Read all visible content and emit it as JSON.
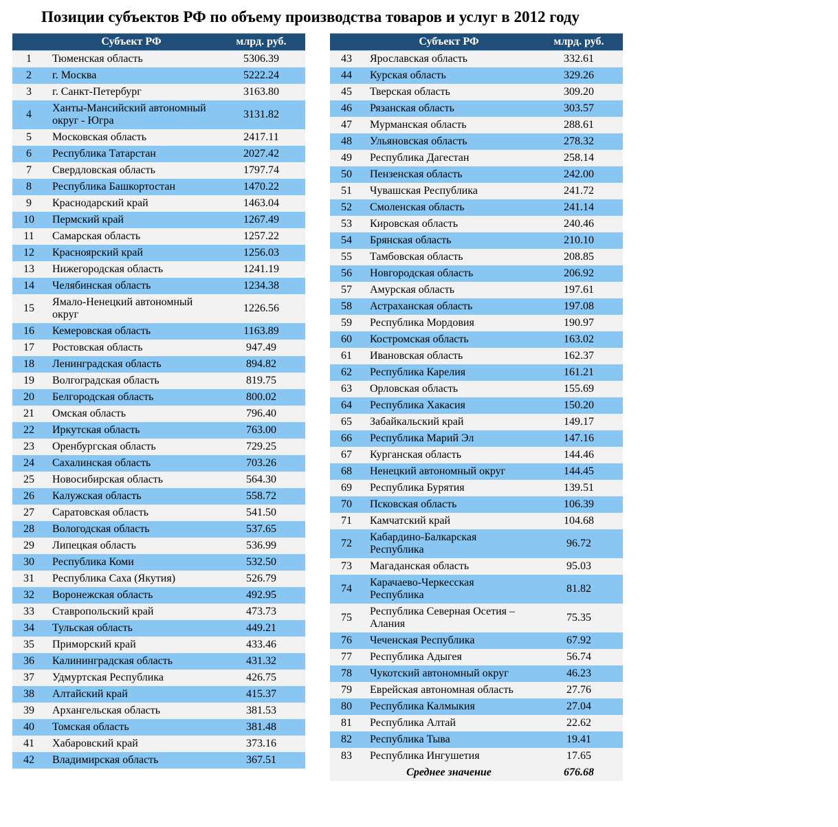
{
  "title": "Позиции субъектов РФ по объему производства товаров и услуг в 2012 году",
  "headers": {
    "rank": "",
    "region": "Субъект РФ",
    "value": "млрд. руб."
  },
  "colors": {
    "header_bg": "#1f4e79",
    "header_fg": "#ffffff",
    "row_odd_bg": "#f2f2f2",
    "row_even_bg": "#8ac6f2"
  },
  "fonts": {
    "family": "Times New Roman",
    "title_size_pt": 17,
    "cell_size_pt": 12
  },
  "average": {
    "label": "Среднее значение",
    "value": "676.68"
  },
  "rows": [
    {
      "rank": 1,
      "region": "Тюменская область",
      "value": "5306.39"
    },
    {
      "rank": 2,
      "region": "г. Москва",
      "value": "5222.24"
    },
    {
      "rank": 3,
      "region": "г. Санкт-Петербург",
      "value": "3163.80"
    },
    {
      "rank": 4,
      "region": "Ханты-Мансийский автономный округ - Югра",
      "value": "3131.82"
    },
    {
      "rank": 5,
      "region": "Московская область",
      "value": "2417.11"
    },
    {
      "rank": 6,
      "region": "Республика Татарстан",
      "value": "2027.42"
    },
    {
      "rank": 7,
      "region": "Свердловская область",
      "value": "1797.74"
    },
    {
      "rank": 8,
      "region": "Республика Башкортостан",
      "value": "1470.22"
    },
    {
      "rank": 9,
      "region": "Краснодарский край",
      "value": "1463.04"
    },
    {
      "rank": 10,
      "region": "Пермский край",
      "value": "1267.49"
    },
    {
      "rank": 11,
      "region": "Самарская область",
      "value": "1257.22"
    },
    {
      "rank": 12,
      "region": "Красноярский край",
      "value": "1256.03"
    },
    {
      "rank": 13,
      "region": "Нижегородская область",
      "value": "1241.19"
    },
    {
      "rank": 14,
      "region": "Челябинская область",
      "value": "1234.38"
    },
    {
      "rank": 15,
      "region": "Ямало-Ненецкий автономный округ",
      "value": "1226.56"
    },
    {
      "rank": 16,
      "region": "Кемеровская область",
      "value": "1163.89"
    },
    {
      "rank": 17,
      "region": "Ростовская область",
      "value": "947.49"
    },
    {
      "rank": 18,
      "region": "Ленинградская область",
      "value": "894.82"
    },
    {
      "rank": 19,
      "region": "Волгоградская область",
      "value": "819.75"
    },
    {
      "rank": 20,
      "region": "Белгородская область",
      "value": "800.02"
    },
    {
      "rank": 21,
      "region": "Омская область",
      "value": "796.40"
    },
    {
      "rank": 22,
      "region": "Иркутская область",
      "value": "763.00"
    },
    {
      "rank": 23,
      "region": "Оренбургская область",
      "value": "729.25"
    },
    {
      "rank": 24,
      "region": "Сахалинская область",
      "value": "703.26"
    },
    {
      "rank": 25,
      "region": "Новосибирская область",
      "value": "564.30"
    },
    {
      "rank": 26,
      "region": "Калужская область",
      "value": "558.72"
    },
    {
      "rank": 27,
      "region": "Саратовская область",
      "value": "541.50"
    },
    {
      "rank": 28,
      "region": "Вологодская область",
      "value": "537.65"
    },
    {
      "rank": 29,
      "region": "Липецкая область",
      "value": "536.99"
    },
    {
      "rank": 30,
      "region": "Республика Коми",
      "value": "532.50"
    },
    {
      "rank": 31,
      "region": "Республика Саха (Якутия)",
      "value": "526.79"
    },
    {
      "rank": 32,
      "region": "Воронежская область",
      "value": "492.95"
    },
    {
      "rank": 33,
      "region": "Ставропольский край",
      "value": "473.73"
    },
    {
      "rank": 34,
      "region": "Тульская область",
      "value": "449.21"
    },
    {
      "rank": 35,
      "region": "Приморский край",
      "value": "433.46"
    },
    {
      "rank": 36,
      "region": "Калининградская область",
      "value": "431.32"
    },
    {
      "rank": 37,
      "region": "Удмуртская Республика",
      "value": "426.75"
    },
    {
      "rank": 38,
      "region": "Алтайский край",
      "value": "415.37"
    },
    {
      "rank": 39,
      "region": "Архангельская область",
      "value": "381.53"
    },
    {
      "rank": 40,
      "region": "Томская область",
      "value": "381.48"
    },
    {
      "rank": 41,
      "region": "Хабаровский край",
      "value": "373.16"
    },
    {
      "rank": 42,
      "region": "Владимирская область",
      "value": "367.51"
    },
    {
      "rank": 43,
      "region": "Ярославская область",
      "value": "332.61"
    },
    {
      "rank": 44,
      "region": "Курская область",
      "value": "329.26"
    },
    {
      "rank": 45,
      "region": "Тверская область",
      "value": "309.20"
    },
    {
      "rank": 46,
      "region": "Рязанская область",
      "value": "303.57"
    },
    {
      "rank": 47,
      "region": "Мурманская область",
      "value": "288.61"
    },
    {
      "rank": 48,
      "region": "Ульяновская область",
      "value": "278.32"
    },
    {
      "rank": 49,
      "region": "Республика Дагестан",
      "value": "258.14"
    },
    {
      "rank": 50,
      "region": "Пензенская область",
      "value": "242.00"
    },
    {
      "rank": 51,
      "region": "Чувашская Республика",
      "value": "241.72"
    },
    {
      "rank": 52,
      "region": "Смоленская область",
      "value": "241.14"
    },
    {
      "rank": 53,
      "region": "Кировская область",
      "value": "240.46"
    },
    {
      "rank": 54,
      "region": "Брянская область",
      "value": "210.10"
    },
    {
      "rank": 55,
      "region": "Тамбовская область",
      "value": "208.85"
    },
    {
      "rank": 56,
      "region": "Новгородская область",
      "value": "206.92"
    },
    {
      "rank": 57,
      "region": "Амурская область",
      "value": "197.61"
    },
    {
      "rank": 58,
      "region": "Астраханская область",
      "value": "197.08"
    },
    {
      "rank": 59,
      "region": "Республика Мордовия",
      "value": "190.97"
    },
    {
      "rank": 60,
      "region": "Костромская область",
      "value": "163.02"
    },
    {
      "rank": 61,
      "region": "Ивановская область",
      "value": "162.37"
    },
    {
      "rank": 62,
      "region": "Республика Карелия",
      "value": "161.21"
    },
    {
      "rank": 63,
      "region": "Орловская область",
      "value": "155.69"
    },
    {
      "rank": 64,
      "region": "Республика Хакасия",
      "value": "150.20"
    },
    {
      "rank": 65,
      "region": "Забайкальский край",
      "value": "149.17"
    },
    {
      "rank": 66,
      "region": "Республика Марий Эл",
      "value": "147.16"
    },
    {
      "rank": 67,
      "region": "Курганская область",
      "value": "144.46"
    },
    {
      "rank": 68,
      "region": "Ненецкий автономный округ",
      "value": "144.45"
    },
    {
      "rank": 69,
      "region": "Республика Бурятия",
      "value": "139.51"
    },
    {
      "rank": 70,
      "region": "Псковская область",
      "value": "106.39"
    },
    {
      "rank": 71,
      "region": "Камчатский край",
      "value": "104.68"
    },
    {
      "rank": 72,
      "region": "Кабардино-Балкарская Республика",
      "value": "96.72"
    },
    {
      "rank": 73,
      "region": "Магаданская область",
      "value": "95.03"
    },
    {
      "rank": 74,
      "region": "Карачаево-Черкесская Республика",
      "value": "81.82"
    },
    {
      "rank": 75,
      "region": "Республика Северная Осетия – Алания",
      "value": "75.35"
    },
    {
      "rank": 76,
      "region": "Чеченская Республика",
      "value": "67.92"
    },
    {
      "rank": 77,
      "region": "Республика Адыгея",
      "value": "56.74"
    },
    {
      "rank": 78,
      "region": "Чукотский автономный округ",
      "value": "46.23"
    },
    {
      "rank": 79,
      "region": "Еврейская автономная область",
      "value": "27.76"
    },
    {
      "rank": 80,
      "region": "Республика Калмыкия",
      "value": "27.04"
    },
    {
      "rank": 81,
      "region": "Республика Алтай",
      "value": "22.62"
    },
    {
      "rank": 82,
      "region": "Республика Тыва",
      "value": "19.41"
    },
    {
      "rank": 83,
      "region": "Республика Ингушетия",
      "value": "17.65"
    }
  ]
}
